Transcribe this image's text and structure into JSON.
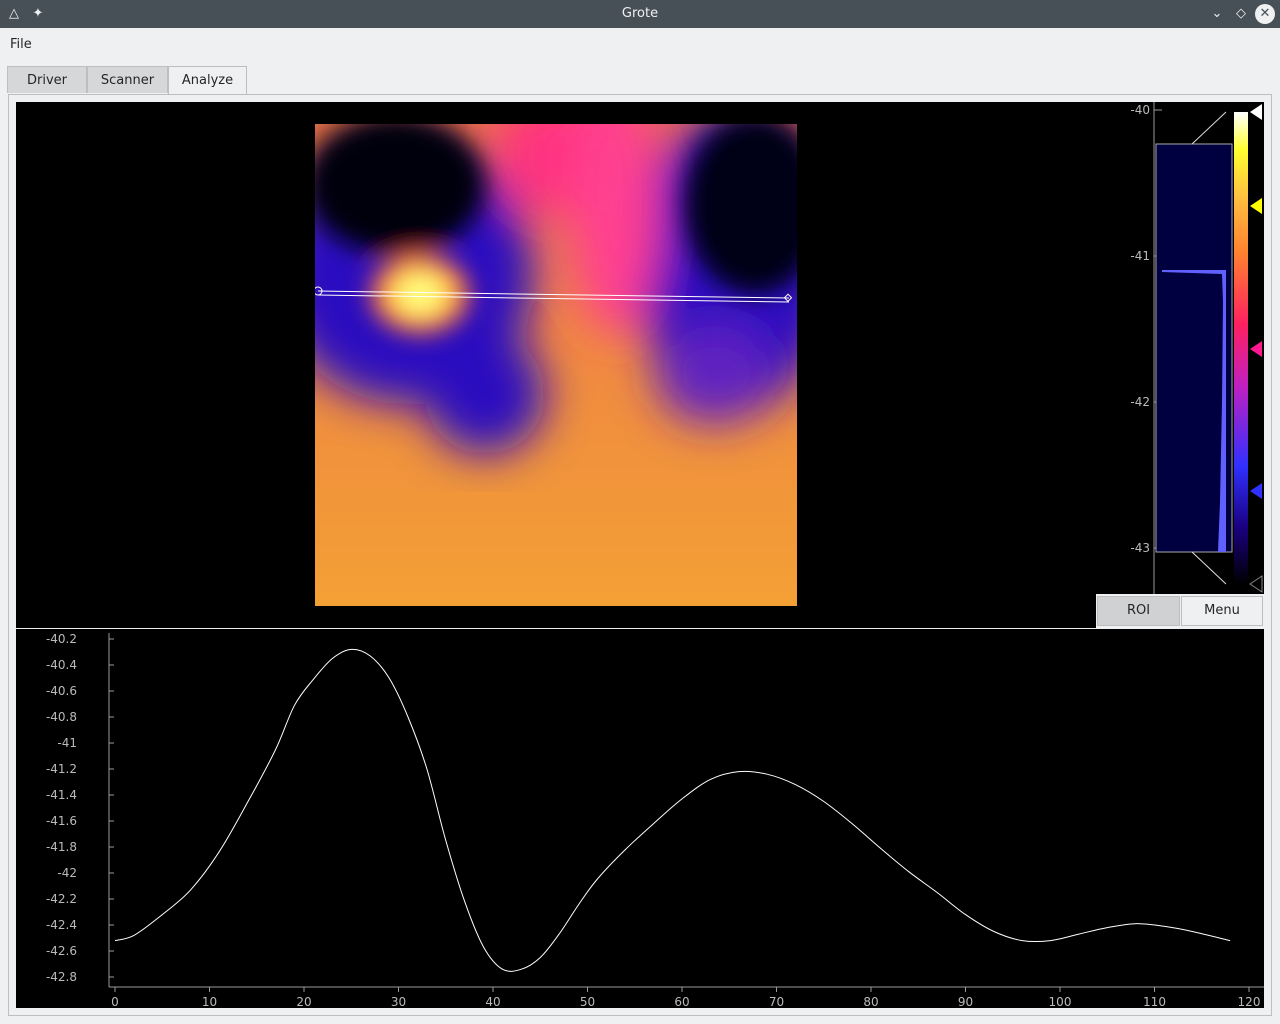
{
  "window": {
    "title": "Grote"
  },
  "menu": {
    "file": "File"
  },
  "tabs": [
    {
      "label": "Driver",
      "active": false
    },
    {
      "label": "Scanner",
      "active": false
    },
    {
      "label": "Analyze",
      "active": true
    }
  ],
  "histogram": {
    "ticks": [
      "-40",
      "-41",
      "-42",
      "-43"
    ],
    "colormap": [
      "#000000",
      "#1a0080",
      "#3030ff",
      "#c020c0",
      "#ff2060",
      "#ff8030",
      "#ffc040",
      "#ffff30",
      "#ffffff"
    ],
    "roi_button": "ROI",
    "menu_button": "Menu"
  },
  "chart_data": {
    "type": "line",
    "title": "",
    "xlabel": "",
    "ylabel": "",
    "xlim": [
      0,
      120
    ],
    "ylim": [
      -42.8,
      -40.2
    ],
    "xticks": [
      "0",
      "10",
      "20",
      "30",
      "40",
      "50",
      "60",
      "70",
      "80",
      "90",
      "100",
      "110",
      "120"
    ],
    "yticks": [
      "-40.2",
      "-40.4",
      "-40.6",
      "-40.8",
      "-41",
      "-41.2",
      "-41.4",
      "-41.6",
      "-41.8",
      "-42",
      "-42.2",
      "-42.4",
      "-42.6",
      "-42.8"
    ],
    "line_color": "#ffffff",
    "x": [
      0,
      2,
      5,
      8,
      11,
      14,
      17,
      19,
      21,
      23,
      25,
      27,
      29,
      31,
      33,
      35,
      37,
      39,
      41,
      43,
      45,
      47,
      49,
      51,
      54,
      57,
      60,
      63,
      66,
      69,
      72,
      75,
      78,
      81,
      84,
      87,
      90,
      93,
      96,
      99,
      102,
      105,
      108,
      111,
      114,
      118
    ],
    "y": [
      -42.52,
      -42.48,
      -42.32,
      -42.13,
      -41.84,
      -41.46,
      -41.05,
      -40.71,
      -40.51,
      -40.35,
      -40.28,
      -40.33,
      -40.5,
      -40.8,
      -41.2,
      -41.75,
      -42.22,
      -42.57,
      -42.74,
      -42.74,
      -42.65,
      -42.47,
      -42.25,
      -42.05,
      -41.82,
      -41.62,
      -41.43,
      -41.28,
      -41.22,
      -41.24,
      -41.32,
      -41.45,
      -41.62,
      -41.81,
      -41.99,
      -42.15,
      -42.32,
      -42.45,
      -42.52,
      -42.52,
      -42.47,
      -42.42,
      -42.39,
      -42.41,
      -42.45,
      -42.52
    ]
  }
}
